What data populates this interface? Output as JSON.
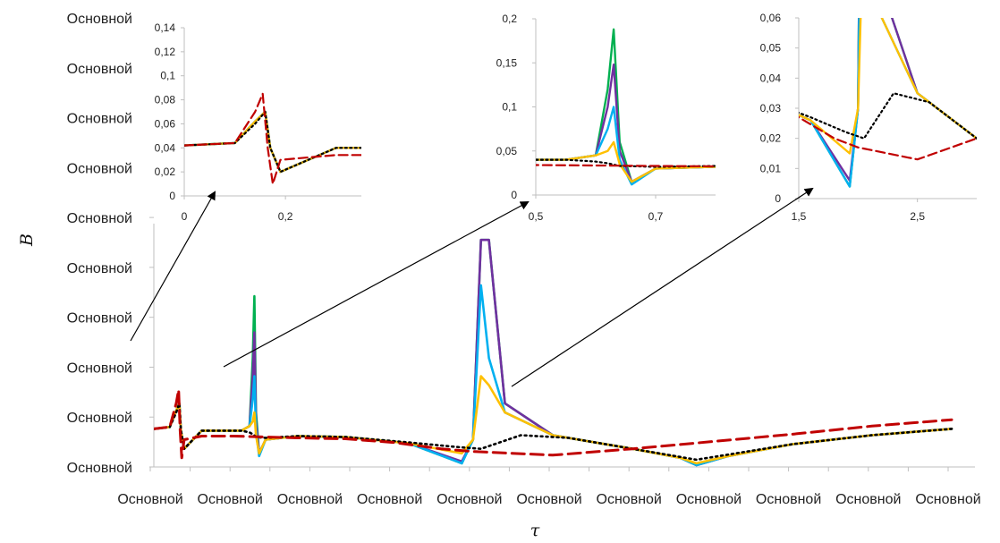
{
  "chart_data": {
    "type": "line",
    "main": {
      "xlabel": "τ",
      "ylabel": "B",
      "x_tick_labels": [
        "Основной",
        "Основной",
        "Основной",
        "Основной",
        "Основной",
        "Основной",
        "Основной",
        "Основной",
        "Основной",
        "Основной",
        "Основной",
        "Основной",
        "Основной",
        "Основной",
        "Основной",
        "Основной",
        "Основной",
        "Основной",
        "Основной",
        "Основной",
        "Основной"
      ],
      "y_tick_labels": [
        "Основной",
        "Основной",
        "Основной",
        "Основной",
        "Основной",
        "Основной",
        "Основной",
        "Основной",
        "Основной",
        "Основной"
      ],
      "xlim": [
        0,
        5
      ],
      "ylim": [
        0,
        0.26
      ],
      "series": [
        {
          "color": "#00b050",
          "style": "solid",
          "x": [
            0,
            0.1,
            0.14,
            0.16,
            0.17,
            0.19,
            0.3,
            0.55,
            0.6,
            0.62,
            0.63,
            0.64,
            0.66,
            0.7,
            0.9,
            1.2,
            1.6,
            1.93,
            2.0,
            2.05,
            2.1,
            2.2,
            2.5,
            3.0,
            3.3,
            3.4,
            3.6,
            4.0,
            4.5,
            5.0
          ],
          "y": [
            0.042,
            0.044,
            0.062,
            0.07,
            0.04,
            0.02,
            0.04,
            0.04,
            0.045,
            0.12,
            0.188,
            0.06,
            0.015,
            0.03,
            0.034,
            0.033,
            0.026,
            0.004,
            0.03,
            0.25,
            0.25,
            0.07,
            0.035,
            0.02,
            0.01,
            0.002,
            0.012,
            0.025,
            0.035,
            0.042
          ]
        },
        {
          "color": "#7030a0",
          "style": "solid",
          "x": [
            0,
            0.1,
            0.14,
            0.16,
            0.17,
            0.19,
            0.3,
            0.55,
            0.6,
            0.62,
            0.63,
            0.64,
            0.66,
            0.7,
            0.9,
            1.2,
            1.6,
            1.93,
            2.0,
            2.05,
            2.1,
            2.2,
            2.5,
            3.0,
            3.3,
            3.4,
            3.6,
            4.0,
            4.5,
            5.0
          ],
          "y": [
            0.042,
            0.044,
            0.062,
            0.07,
            0.04,
            0.02,
            0.04,
            0.04,
            0.045,
            0.1,
            0.148,
            0.05,
            0.015,
            0.03,
            0.034,
            0.033,
            0.026,
            0.006,
            0.03,
            0.25,
            0.25,
            0.07,
            0.035,
            0.02,
            0.01,
            0.002,
            0.012,
            0.025,
            0.035,
            0.042
          ]
        },
        {
          "color": "#00b0f0",
          "style": "solid",
          "x": [
            0,
            0.1,
            0.14,
            0.16,
            0.17,
            0.19,
            0.3,
            0.55,
            0.6,
            0.62,
            0.63,
            0.64,
            0.66,
            0.7,
            0.9,
            1.2,
            1.6,
            1.93,
            2.0,
            2.05,
            2.1,
            2.2,
            2.5,
            3.0,
            3.3,
            3.4,
            3.6,
            4.0,
            4.5,
            5.0
          ],
          "y": [
            0.042,
            0.044,
            0.062,
            0.07,
            0.04,
            0.02,
            0.04,
            0.04,
            0.045,
            0.075,
            0.1,
            0.04,
            0.012,
            0.03,
            0.034,
            0.033,
            0.026,
            0.004,
            0.03,
            0.2,
            0.12,
            0.06,
            0.035,
            0.02,
            0.01,
            0.002,
            0.012,
            0.025,
            0.035,
            0.042
          ]
        },
        {
          "color": "#ffc000",
          "style": "solid",
          "x": [
            0,
            0.1,
            0.14,
            0.16,
            0.17,
            0.19,
            0.3,
            0.55,
            0.6,
            0.62,
            0.63,
            0.64,
            0.66,
            0.7,
            0.9,
            1.2,
            1.6,
            1.93,
            2.0,
            2.05,
            2.1,
            2.2,
            2.5,
            3.0,
            3.3,
            3.4,
            3.6,
            4.0,
            4.5,
            5.0
          ],
          "y": [
            0.042,
            0.044,
            0.062,
            0.07,
            0.04,
            0.02,
            0.04,
            0.04,
            0.045,
            0.05,
            0.06,
            0.035,
            0.015,
            0.03,
            0.034,
            0.033,
            0.026,
            0.015,
            0.03,
            0.1,
            0.09,
            0.06,
            0.035,
            0.02,
            0.01,
            0.004,
            0.012,
            0.025,
            0.035,
            0.042
          ]
        },
        {
          "color": "#000000",
          "style": "dotted",
          "x": [
            0,
            0.1,
            0.14,
            0.16,
            0.17,
            0.19,
            0.3,
            0.55,
            0.6,
            0.62,
            0.64,
            0.7,
            0.9,
            1.2,
            1.6,
            1.9,
            2.05,
            2.3,
            2.6,
            3.0,
            3.4,
            4.0,
            4.5,
            5.0
          ],
          "y": [
            0.042,
            0.044,
            0.06,
            0.07,
            0.04,
            0.02,
            0.04,
            0.04,
            0.038,
            0.036,
            0.033,
            0.032,
            0.034,
            0.033,
            0.027,
            0.022,
            0.02,
            0.035,
            0.032,
            0.02,
            0.008,
            0.025,
            0.035,
            0.042
          ]
        },
        {
          "color": "#c00000",
          "style": "dashed",
          "x": [
            0,
            0.1,
            0.14,
            0.155,
            0.165,
            0.175,
            0.19,
            0.3,
            0.5,
            0.7,
            0.9,
            1.2,
            1.5,
            1.8,
            2.0,
            2.5,
            3.0,
            3.5,
            4.0,
            4.5,
            5.0
          ],
          "y": [
            0.042,
            0.044,
            0.07,
            0.085,
            0.04,
            0.01,
            0.03,
            0.034,
            0.034,
            0.033,
            0.032,
            0.031,
            0.027,
            0.02,
            0.017,
            0.013,
            0.02,
            0.028,
            0.036,
            0.045,
            0.052
          ]
        }
      ]
    },
    "insets": [
      {
        "xlim": [
          0,
          0.35
        ],
        "ylim": [
          0,
          0.14
        ],
        "x_ticks": [
          0,
          0.2
        ],
        "x_tick_labels": [
          "0",
          "0,2"
        ],
        "y_ticks": [
          0,
          0.02,
          0.04,
          0.06,
          0.08,
          0.1,
          0.12,
          0.14
        ],
        "y_tick_labels": [
          "0",
          "0,02",
          "0,04",
          "0,06",
          "0,08",
          "0,1",
          "0,12",
          "0,14"
        ]
      },
      {
        "xlim": [
          0.5,
          0.8
        ],
        "ylim": [
          0,
          0.2
        ],
        "x_ticks": [
          0.5,
          0.7
        ],
        "x_tick_labels": [
          "0,5",
          "0,7"
        ],
        "y_ticks": [
          0,
          0.05,
          0.1,
          0.15,
          0.2
        ],
        "y_tick_labels": [
          "0",
          "0,05",
          "0,1",
          "0,15",
          "0,2"
        ]
      },
      {
        "xlim": [
          1.5,
          3.0
        ],
        "ylim": [
          0,
          0.06
        ],
        "x_ticks": [
          1.5,
          2.5
        ],
        "x_tick_labels": [
          "1,5",
          "2,5"
        ],
        "y_ticks": [
          0,
          0.01,
          0.02,
          0.03,
          0.04,
          0.05,
          0.06
        ],
        "y_tick_labels": [
          "0",
          "0,01",
          "0,02",
          "0,03",
          "0,04",
          "0,05",
          "0,06"
        ]
      }
    ],
    "grid": false,
    "legend": "none"
  }
}
